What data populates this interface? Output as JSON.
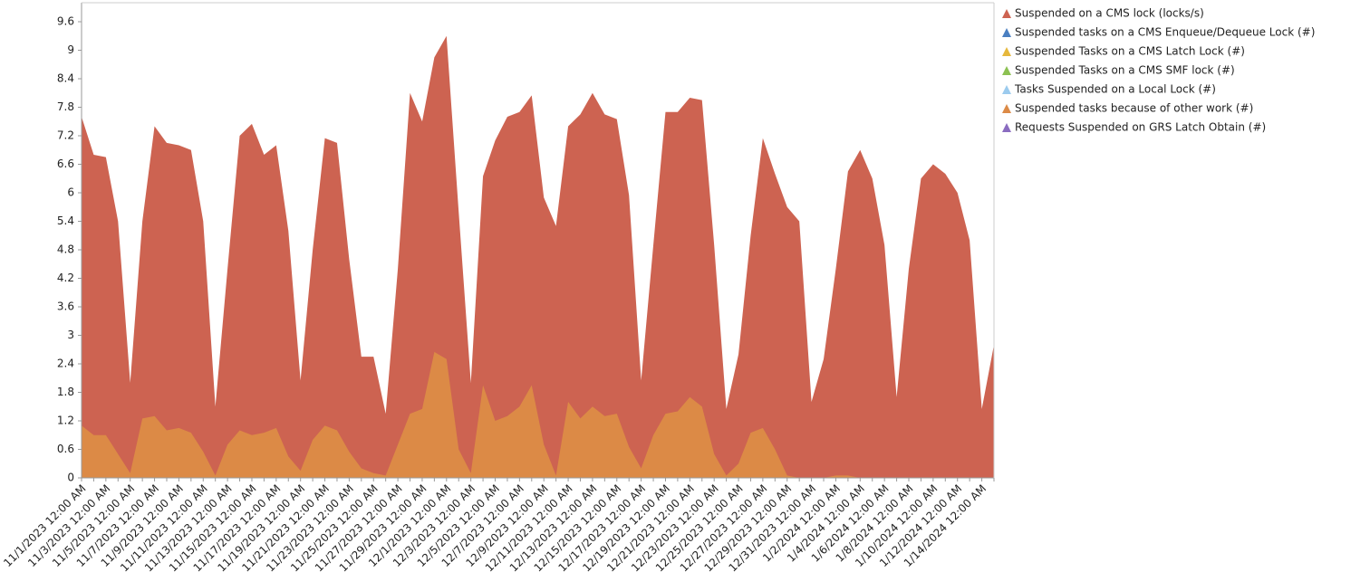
{
  "chart_data": {
    "type": "area",
    "stacked": false,
    "categories": [
      "11/1/2023 12:00 AM",
      null,
      "11/3/2023 12:00 AM",
      null,
      "11/5/2023 12:00 AM",
      null,
      "11/7/2023 12:00 AM",
      null,
      "11/9/2023 12:00 AM",
      null,
      "11/11/2023 12:00 AM",
      null,
      "11/13/2023 12:00 AM",
      null,
      "11/15/2023 12:00 AM",
      null,
      "11/17/2023 12:00 AM",
      null,
      "11/19/2023 12:00 AM",
      null,
      "11/21/2023 12:00 AM",
      null,
      "11/23/2023 12:00 AM",
      null,
      "11/25/2023 12:00 AM",
      null,
      "11/27/2023 12:00 AM",
      null,
      "11/29/2023 12:00 AM",
      null,
      "12/1/2023 12:00 AM",
      null,
      "12/3/2023 12:00 AM",
      null,
      "12/5/2023 12:00 AM",
      null,
      "12/7/2023 12:00 AM",
      null,
      "12/9/2023 12:00 AM",
      null,
      "12/11/2023 12:00 AM",
      null,
      "12/13/2023 12:00 AM",
      null,
      "12/15/2023 12:00 AM",
      null,
      "12/17/2023 12:00 AM",
      null,
      "12/19/2023 12:00 AM",
      null,
      "12/21/2023 12:00 AM",
      null,
      "12/23/2023 12:00 AM",
      null,
      "12/25/2023 12:00 AM",
      null,
      "12/27/2023 12:00 AM",
      null,
      "12/29/2023 12:00 AM",
      null,
      "12/31/2023 12:00 AM",
      null,
      "1/2/2024 12:00 AM",
      null,
      "1/4/2024 12:00 AM",
      null,
      "1/6/2024 12:00 AM",
      null,
      "1/8/2024 12:00 AM",
      null,
      "1/10/2024 12:00 AM",
      null,
      "1/12/2024 12:00 AM",
      null,
      "1/14/2024 12:00 AM",
      null
    ],
    "series": [
      {
        "name": "Suspended on a CMS lock (locks/s)",
        "color": "#cd6351",
        "values": [
          7.6,
          6.8,
          6.75,
          5.4,
          2.0,
          5.4,
          7.4,
          7.05,
          7.0,
          6.9,
          5.4,
          1.5,
          4.4,
          7.2,
          7.45,
          6.8,
          7.0,
          5.2,
          2.05,
          4.8,
          7.15,
          7.05,
          4.6,
          2.55,
          2.55,
          1.35,
          4.4,
          8.1,
          7.5,
          8.85,
          9.3,
          5.6,
          2.0,
          6.35,
          7.1,
          7.6,
          7.7,
          8.05,
          5.9,
          5.3,
          7.4,
          7.65,
          8.1,
          7.65,
          7.55,
          5.95,
          2.05,
          4.9,
          7.7,
          7.7,
          8.0,
          7.95,
          4.9,
          1.45,
          2.6,
          5.1,
          7.15,
          6.4,
          5.7,
          5.4,
          1.6,
          2.5,
          4.4,
          6.45,
          6.9,
          6.3,
          4.9,
          1.7,
          4.4,
          6.3,
          6.6,
          6.4,
          6.0,
          5.0,
          1.45,
          2.8
        ]
      },
      {
        "name": "Suspended tasks on a CMS Enqueue/Dequeue Lock (#)",
        "color": "#4a7fc1",
        "values": [
          0,
          0,
          0,
          0,
          0,
          0,
          0,
          0,
          0,
          0,
          0,
          0,
          0,
          0,
          0,
          0,
          0,
          0,
          0,
          0,
          0,
          0,
          0,
          0,
          0,
          0,
          0,
          0,
          0,
          0,
          0,
          0,
          0,
          0,
          0,
          0,
          0,
          0,
          0,
          0,
          0,
          0,
          0,
          0,
          0,
          0,
          0,
          0,
          0,
          0,
          0,
          0,
          0,
          0,
          0,
          0,
          0,
          0,
          0,
          0,
          0,
          0,
          0,
          0,
          0,
          0,
          0,
          0,
          0,
          0,
          0,
          0,
          0,
          0,
          0,
          0
        ]
      },
      {
        "name": "Suspended Tasks on a CMS Latch Lock (#)",
        "color": "#e6b83c",
        "values": [
          0,
          0,
          0,
          0,
          0,
          0,
          0,
          0,
          0,
          0,
          0,
          0,
          0,
          0,
          0,
          0,
          0,
          0,
          0,
          0,
          0,
          0,
          0,
          0,
          0,
          0,
          0,
          0,
          0,
          0,
          0,
          0,
          0,
          0,
          0,
          0,
          0,
          0,
          0,
          0,
          0,
          0,
          0,
          0,
          0,
          0,
          0,
          0,
          0,
          0,
          0,
          0,
          0,
          0,
          0,
          0,
          0,
          0,
          0,
          0,
          0,
          0,
          0,
          0,
          0,
          0,
          0,
          0,
          0,
          0,
          0,
          0,
          0,
          0,
          0,
          0
        ]
      },
      {
        "name": "Suspended Tasks on a CMS SMF lock (#)",
        "color": "#8cc152",
        "values": [
          0,
          0,
          0,
          0,
          0,
          0,
          0,
          0,
          0,
          0,
          0,
          0,
          0,
          0,
          0,
          0,
          0,
          0,
          0,
          0,
          0,
          0,
          0,
          0,
          0,
          0,
          0,
          0,
          0,
          0,
          0,
          0,
          0,
          0,
          0,
          0,
          0,
          0,
          0,
          0,
          0,
          0,
          0,
          0,
          0,
          0,
          0,
          0,
          0,
          0,
          0,
          0,
          0,
          0,
          0,
          0,
          0,
          0,
          0,
          0,
          0,
          0,
          0,
          0,
          0,
          0,
          0,
          0,
          0,
          0,
          0,
          0,
          0,
          0,
          0,
          0
        ]
      },
      {
        "name": "Tasks Suspended on a Local Lock (#)",
        "color": "#9ccbee",
        "values": [
          0,
          0,
          0,
          0,
          0,
          0,
          0,
          0,
          0,
          0,
          0,
          0,
          0,
          0,
          0,
          0,
          0,
          0,
          0,
          0,
          0,
          0,
          0,
          0,
          0,
          0,
          0,
          0,
          0,
          0,
          0,
          0,
          0,
          0,
          0,
          0,
          0,
          0,
          0,
          0,
          0,
          0,
          0,
          0,
          0,
          0,
          0,
          0,
          0,
          0,
          0,
          0,
          0,
          0,
          0,
          0,
          0,
          0,
          0,
          0,
          0,
          0,
          0,
          0,
          0,
          0,
          0,
          0,
          0,
          0,
          0,
          0,
          0,
          0,
          0,
          0
        ]
      },
      {
        "name": "Suspended tasks because of other work (#)",
        "color": "#dc8a46",
        "values": [
          1.1,
          0.9,
          0.9,
          0.5,
          0.1,
          1.25,
          1.3,
          1.0,
          1.05,
          0.95,
          0.55,
          0.05,
          0.7,
          1.0,
          0.9,
          0.95,
          1.05,
          0.45,
          0.15,
          0.8,
          1.1,
          1.0,
          0.55,
          0.2,
          0.1,
          0.05,
          0.7,
          1.35,
          1.45,
          2.65,
          2.5,
          0.6,
          0.1,
          1.95,
          1.2,
          1.3,
          1.5,
          1.95,
          0.7,
          0.05,
          1.6,
          1.25,
          1.5,
          1.3,
          1.35,
          0.65,
          0.2,
          0.9,
          1.35,
          1.4,
          1.7,
          1.5,
          0.5,
          0.05,
          0.3,
          0.95,
          1.05,
          0.6,
          0.05,
          0,
          0,
          0,
          0.05,
          0.05,
          0,
          0,
          0,
          0,
          0,
          0,
          0,
          0,
          0,
          0,
          0,
          0
        ]
      },
      {
        "name": "Requests Suspended on GRS Latch Obtain (#)",
        "color": "#8a6cc0",
        "values": [
          0,
          0,
          0,
          0,
          0,
          0,
          0,
          0,
          0,
          0,
          0,
          0,
          0,
          0,
          0,
          0,
          0,
          0,
          0,
          0,
          0,
          0,
          0,
          0,
          0,
          0,
          0,
          0,
          0,
          0,
          0,
          0,
          0,
          0,
          0,
          0,
          0,
          0,
          0,
          0,
          0,
          0,
          0,
          0,
          0,
          0,
          0,
          0,
          0,
          0,
          0,
          0,
          0,
          0,
          0,
          0,
          0,
          0,
          0,
          0,
          0,
          0,
          0,
          0,
          0,
          0,
          0,
          0,
          0,
          0,
          0,
          0,
          0,
          0,
          0,
          0
        ]
      }
    ],
    "ylim": [
      0,
      10
    ],
    "yticks": [
      0,
      0.6,
      1.2,
      1.8,
      2.4,
      3,
      3.6,
      4.2,
      4.8,
      5.4,
      6,
      6.6,
      7.2,
      7.8,
      8.4,
      9,
      9.6
    ],
    "legend": "right"
  }
}
